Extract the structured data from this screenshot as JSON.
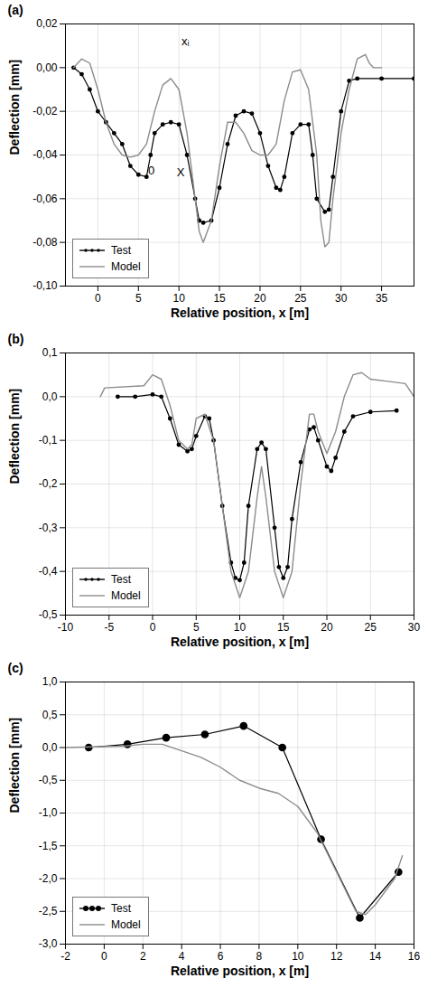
{
  "chart_data": [
    {
      "type": "line",
      "title": "(a)",
      "x_label": "Relative position, x [m]",
      "y_label": "Deflection [mm]",
      "xlim": [
        -4,
        39
      ],
      "xticks": [
        0,
        5,
        10,
        15,
        20,
        25,
        30,
        35
      ],
      "ylim": [
        -0.1,
        0.02
      ],
      "yticks": [
        {
          "value": -0.1,
          "label": "-0,10"
        },
        {
          "value": -0.08,
          "label": "-0,08"
        },
        {
          "value": -0.06,
          "label": "-0,06"
        },
        {
          "value": -0.04,
          "label": "-0,04"
        },
        {
          "value": -0.02,
          "label": "-0,02"
        },
        {
          "value": 0,
          "label": "0,00"
        },
        {
          "value": 0.02,
          "label": "0,02"
        }
      ],
      "grid": true,
      "legend": "bottom-left",
      "annotations": [
        {
          "text": "0",
          "x": 6.6,
          "y": -0.047
        },
        {
          "text": "X",
          "x": 10.2,
          "y": -0.048
        },
        {
          "text": "xᵢ",
          "x": 10.8,
          "y": 0.012
        }
      ],
      "series": [
        {
          "name": "Test",
          "color": "#000000",
          "marker": "dot",
          "line_style": "solid",
          "x": [
            -3,
            -2,
            -1,
            0,
            1,
            2,
            3,
            4,
            5,
            6,
            6.5,
            7,
            8,
            9,
            10,
            11,
            12,
            12.5,
            13,
            14,
            15,
            16,
            17,
            18,
            19,
            20,
            21,
            22,
            22.5,
            23,
            24,
            25,
            26,
            26.5,
            27,
            28,
            28.5,
            29,
            30,
            31,
            32,
            35,
            39
          ],
          "values": [
            0,
            -0.003,
            -0.01,
            -0.02,
            -0.025,
            -0.03,
            -0.035,
            -0.045,
            -0.049,
            -0.05,
            -0.04,
            -0.03,
            -0.026,
            -0.025,
            -0.026,
            -0.04,
            -0.06,
            -0.07,
            -0.071,
            -0.07,
            -0.055,
            -0.035,
            -0.022,
            -0.02,
            -0.021,
            -0.03,
            -0.045,
            -0.055,
            -0.056,
            -0.05,
            -0.03,
            -0.026,
            -0.026,
            -0.04,
            -0.06,
            -0.066,
            -0.065,
            -0.05,
            -0.02,
            -0.006,
            -0.005,
            -0.005,
            -0.005
          ]
        },
        {
          "name": "Model",
          "color": "#8c8c8c",
          "marker": "none",
          "line_style": "solid",
          "x": [
            -3,
            -2,
            -1,
            0,
            1,
            2,
            3,
            4,
            5,
            6,
            7,
            8,
            9,
            10,
            11,
            12,
            12.5,
            13,
            14,
            15,
            16,
            17,
            18,
            19,
            20,
            21,
            22,
            23,
            24,
            25,
            26,
            27,
            27.5,
            28,
            28.5,
            29,
            30,
            31,
            32,
            33,
            33.5,
            34,
            35
          ],
          "values": [
            0,
            0.004,
            0.002,
            -0.01,
            -0.025,
            -0.035,
            -0.04,
            -0.041,
            -0.04,
            -0.035,
            -0.02,
            -0.008,
            -0.005,
            -0.01,
            -0.03,
            -0.06,
            -0.075,
            -0.08,
            -0.07,
            -0.045,
            -0.025,
            -0.025,
            -0.03,
            -0.038,
            -0.04,
            -0.04,
            -0.035,
            -0.015,
            -0.002,
            -0.001,
            -0.01,
            -0.04,
            -0.07,
            -0.082,
            -0.08,
            -0.06,
            -0.03,
            -0.01,
            0.004,
            0.006,
            0.002,
            0,
            0
          ]
        }
      ]
    },
    {
      "type": "line",
      "title": "(b)",
      "x_label": "Relative position, x [m]",
      "y_label": "Deflection [mm]",
      "xlim": [
        -10,
        30
      ],
      "xticks": [
        -10,
        -5,
        0,
        5,
        10,
        15,
        20,
        25,
        30
      ],
      "ylim": [
        -0.5,
        0.1
      ],
      "yticks": [
        {
          "value": -0.5,
          "label": "-0,5"
        },
        {
          "value": -0.4,
          "label": "-0,4"
        },
        {
          "value": -0.3,
          "label": "-0,3"
        },
        {
          "value": -0.2,
          "label": "-0,2"
        },
        {
          "value": -0.1,
          "label": "-0,1"
        },
        {
          "value": 0,
          "label": "0,0"
        },
        {
          "value": 0.1,
          "label": "0,1"
        }
      ],
      "grid": true,
      "legend": "bottom-left",
      "series": [
        {
          "name": "Test",
          "color": "#000000",
          "marker": "dot",
          "line_style": "solid",
          "x": [
            -4,
            -2,
            0,
            1,
            2,
            3,
            4,
            4.5,
            5,
            6,
            6.5,
            7,
            8,
            9,
            9.5,
            10,
            10.5,
            11,
            12,
            12.5,
            13,
            14,
            14.5,
            15,
            15.5,
            16,
            17,
            18,
            18.5,
            19,
            20,
            20.5,
            21,
            22,
            23,
            25,
            28
          ],
          "values": [
            0,
            0,
            0.005,
            0,
            -0.05,
            -0.11,
            -0.125,
            -0.12,
            -0.09,
            -0.045,
            -0.05,
            -0.1,
            -0.25,
            -0.38,
            -0.415,
            -0.42,
            -0.38,
            -0.25,
            -0.12,
            -0.105,
            -0.12,
            -0.3,
            -0.39,
            -0.415,
            -0.39,
            -0.28,
            -0.15,
            -0.075,
            -0.07,
            -0.1,
            -0.16,
            -0.17,
            -0.14,
            -0.08,
            -0.045,
            -0.035,
            -0.032
          ]
        },
        {
          "name": "Model",
          "color": "#8c8c8c",
          "marker": "none",
          "line_style": "solid",
          "x": [
            -6,
            -5.5,
            -1,
            0,
            1,
            2,
            3,
            4,
            4.5,
            5,
            6,
            7,
            8,
            9,
            10,
            11,
            12,
            12.5,
            13,
            14,
            15,
            16,
            17,
            18,
            18.5,
            19,
            20,
            21,
            22,
            23,
            24,
            25,
            27,
            29,
            30
          ],
          "values": [
            0,
            0.02,
            0.025,
            0.05,
            0.04,
            -0.02,
            -0.1,
            -0.12,
            -0.11,
            -0.05,
            -0.04,
            -0.1,
            -0.25,
            -0.4,
            -0.46,
            -0.4,
            -0.23,
            -0.16,
            -0.23,
            -0.4,
            -0.46,
            -0.4,
            -0.2,
            -0.04,
            -0.04,
            -0.08,
            -0.13,
            -0.08,
            0,
            0.05,
            0.055,
            0.04,
            0.035,
            0.03,
            0
          ]
        }
      ]
    },
    {
      "type": "line",
      "title": "(c)",
      "x_label": "Relative position, x [m]",
      "y_label": "Deflection [mm]",
      "xlim": [
        -2,
        16
      ],
      "xticks": [
        -2,
        0,
        2,
        4,
        6,
        8,
        10,
        12,
        14,
        16
      ],
      "ylim": [
        -3,
        1
      ],
      "yticks": [
        {
          "value": -3,
          "label": "-3,0"
        },
        {
          "value": -2.5,
          "label": "-2,5"
        },
        {
          "value": -2,
          "label": "-2,0"
        },
        {
          "value": -1.5,
          "label": "-1,5"
        },
        {
          "value": -1,
          "label": "-1,0"
        },
        {
          "value": -0.5,
          "label": "-0,5"
        },
        {
          "value": 0,
          "label": "0,0"
        },
        {
          "value": 0.5,
          "label": "0,5"
        },
        {
          "value": 1,
          "label": "1,0"
        }
      ],
      "grid": true,
      "legend": "bottom-left",
      "series": [
        {
          "name": "Test",
          "color": "#000000",
          "marker": "circle",
          "line_style": "solid",
          "x": [
            -0.8,
            1.2,
            3.2,
            5.2,
            7.2,
            9.2,
            11.2,
            13.2,
            15.2
          ],
          "values": [
            0,
            0.05,
            0.15,
            0.2,
            0.33,
            0,
            -1.4,
            -2.6,
            -1.9
          ]
        },
        {
          "name": "Model",
          "color": "#8c8c8c",
          "marker": "none",
          "line_style": "solid",
          "x": [
            -2,
            1,
            2,
            3,
            4,
            5,
            6,
            7,
            8,
            9,
            10,
            11,
            12,
            13,
            13.5,
            14,
            15,
            15.4
          ],
          "values": [
            0,
            0.02,
            0.05,
            0.05,
            -0.05,
            -0.15,
            -0.3,
            -0.5,
            -0.62,
            -0.7,
            -0.9,
            -1.3,
            -1.9,
            -2.5,
            -2.55,
            -2.4,
            -2,
            -1.65
          ]
        }
      ]
    }
  ]
}
